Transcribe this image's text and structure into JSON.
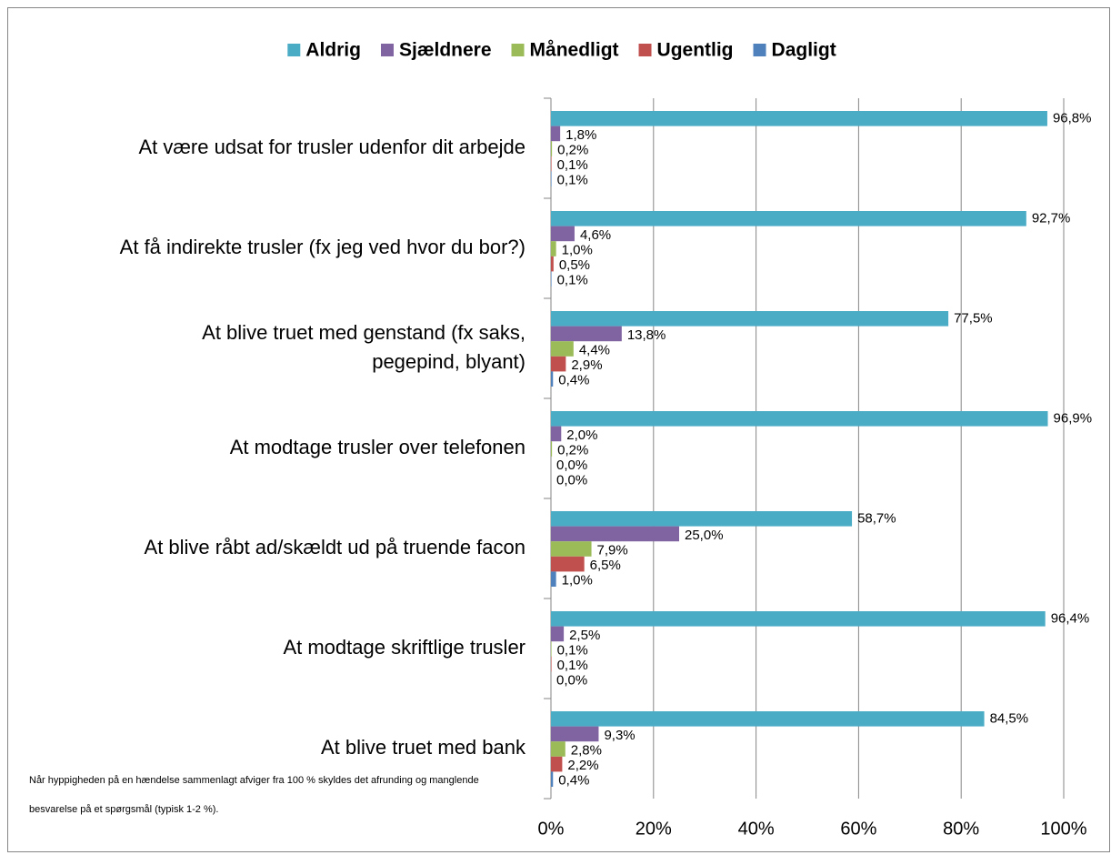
{
  "chart_data": {
    "type": "bar",
    "orientation": "horizontal",
    "categories": [
      "At være udsat for trusler udenfor dit arbejde",
      "At få indirekte trusler (fx jeg ved hvor du bor?)",
      "At blive truet med genstand (fx saks,\npegepind, blyant)",
      "At modtage trusler over telefonen",
      "At blive råbt ad/skældt ud på truende facon",
      "At modtage skriftlige trusler",
      "At blive truet med bank"
    ],
    "series": [
      {
        "name": "Aldrig",
        "color": "#4bacc6",
        "values": [
          96.8,
          92.7,
          77.5,
          96.9,
          58.7,
          96.4,
          84.5
        ],
        "value_labels": [
          "96,8%",
          "92,7%",
          "77,5%",
          "96,9%",
          "58,7%",
          "96,4%",
          "84,5%"
        ]
      },
      {
        "name": "Sjældnere",
        "color": "#8064a2",
        "values": [
          1.8,
          4.6,
          13.8,
          2.0,
          25.0,
          2.5,
          9.3
        ],
        "value_labels": [
          "1,8%",
          "4,6%",
          "13,8%",
          "2,0%",
          "25,0%",
          "2,5%",
          "9,3%"
        ]
      },
      {
        "name": "Månedligt",
        "color": "#9bbb59",
        "values": [
          0.2,
          1.0,
          4.4,
          0.2,
          7.9,
          0.1,
          2.8
        ],
        "value_labels": [
          "0,2%",
          "1,0%",
          "4,4%",
          "0,2%",
          "7,9%",
          "0,1%",
          "2,8%"
        ]
      },
      {
        "name": "Ugentlig",
        "color": "#c0504d",
        "values": [
          0.1,
          0.5,
          2.9,
          0.0,
          6.5,
          0.1,
          2.2
        ],
        "value_labels": [
          "0,1%",
          "0,5%",
          "2,9%",
          "0,0%",
          "6,5%",
          "0,1%",
          "2,2%"
        ]
      },
      {
        "name": "Dagligt",
        "color": "#4f81bd",
        "values": [
          0.1,
          0.1,
          0.4,
          0.0,
          1.0,
          0.0,
          0.4
        ],
        "value_labels": [
          "0,1%",
          "0,1%",
          "0,4%",
          "0,0%",
          "1,0%",
          "0,0%",
          "0,4%"
        ]
      }
    ],
    "xlim": [
      0,
      100
    ],
    "xticks": [
      {
        "value": 0,
        "label": "0%"
      },
      {
        "value": 20,
        "label": "20%"
      },
      {
        "value": 40,
        "label": "40%"
      },
      {
        "value": 60,
        "label": "60%"
      },
      {
        "value": 80,
        "label": "80%"
      },
      {
        "value": 100,
        "label": "100%"
      }
    ],
    "grid": true,
    "legend": "top",
    "note": [
      "Når hyppigheden på en hændelse sammenlagt afviger fra 100 % skyldes det afrunding og manglende",
      "besvarelse på et spørgsmål (typisk 1-2 %)."
    ]
  }
}
